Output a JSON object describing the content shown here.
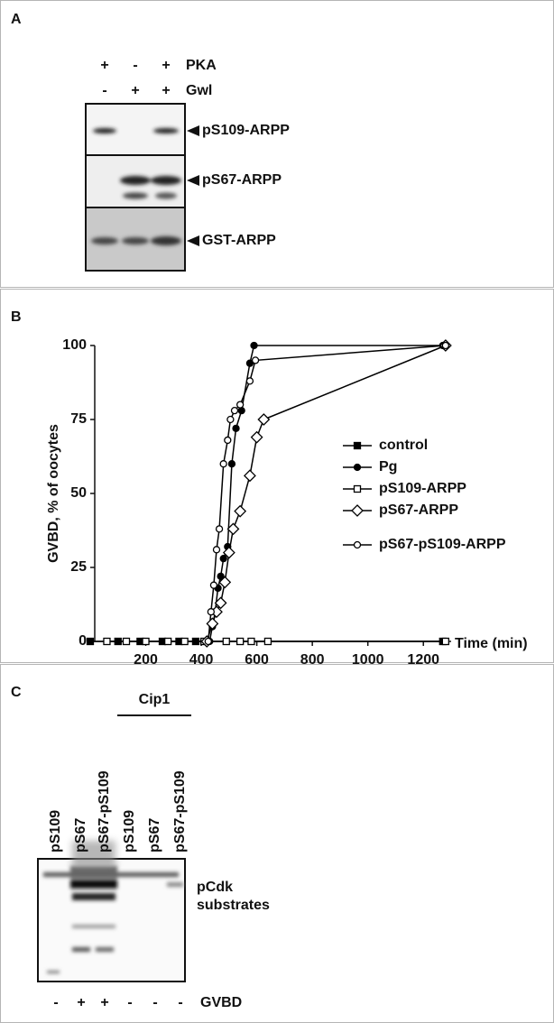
{
  "panel_a": {
    "label": "A",
    "rows": [
      {
        "name": "PKA",
        "signs": [
          "+",
          "-",
          "+"
        ]
      },
      {
        "name": "Gwl",
        "signs": [
          "-",
          "+",
          "+"
        ]
      }
    ],
    "blots": [
      "pS109-ARPP",
      "pS67-ARPP",
      "GST-ARPP"
    ]
  },
  "chart_data": {
    "type": "line",
    "panel_label": "B",
    "ylabel": "GVBD, % of oocytes",
    "xlabel": "Time (min)",
    "xlim": [
      0,
      1300
    ],
    "xticks": [
      200,
      400,
      600,
      800,
      1000,
      1200
    ],
    "ylim": [
      0,
      100
    ],
    "yticks": [
      0,
      25,
      50,
      75,
      100
    ],
    "legend": "right",
    "series": [
      {
        "name": "control",
        "color": "#000000",
        "marker": "square",
        "filled": true,
        "x": [
          0,
          100,
          180,
          260,
          320,
          380,
          1270
        ],
        "values": [
          0,
          0,
          0,
          0,
          0,
          0,
          0
        ]
      },
      {
        "name": "Pg",
        "color": "#000000",
        "marker": "circle",
        "filled": true,
        "x": [
          430,
          440,
          450,
          460,
          470,
          480,
          495,
          510,
          525,
          545,
          575,
          590,
          1270
        ],
        "values": [
          0,
          5,
          10,
          18,
          22,
          28,
          32,
          60,
          72,
          78,
          94,
          100,
          100
        ]
      },
      {
        "name": "pS109-ARPP",
        "color": "#000000",
        "marker": "square",
        "filled": false,
        "x": [
          60,
          130,
          200,
          280,
          340,
          410,
          490,
          540,
          580,
          640,
          1280
        ],
        "values": [
          0,
          0,
          0,
          0,
          0,
          0,
          0,
          0,
          0,
          0,
          0
        ]
      },
      {
        "name": "pS67-ARPP",
        "color": "#000000",
        "marker": "diamond",
        "filled": false,
        "x": [
          420,
          440,
          455,
          470,
          485,
          500,
          515,
          540,
          575,
          600,
          625,
          1280
        ],
        "values": [
          0,
          6,
          10,
          13,
          20,
          30,
          38,
          44,
          56,
          69,
          75,
          100
        ]
      },
      {
        "name": "pS67-pS109-ARPP",
        "color": "#000000",
        "marker": "circle",
        "filled": false,
        "x": [
          425,
          435,
          445,
          455,
          465,
          480,
          495,
          505,
          520,
          540,
          575,
          595,
          1280
        ],
        "values": [
          0,
          10,
          19,
          31,
          38,
          60,
          68,
          75,
          78,
          80,
          88,
          95,
          100
        ]
      }
    ]
  },
  "panel_c": {
    "label": "C",
    "group": "Cip1",
    "lanes": [
      "pS109",
      "pS67",
      "pS67-pS109",
      "pS109",
      "pS67",
      "pS67-pS109"
    ],
    "blot": [
      "pCdk",
      "substrates"
    ],
    "row": {
      "name": "GVBD",
      "signs": [
        "-",
        "+",
        "+",
        "-",
        "-",
        "-"
      ]
    }
  }
}
